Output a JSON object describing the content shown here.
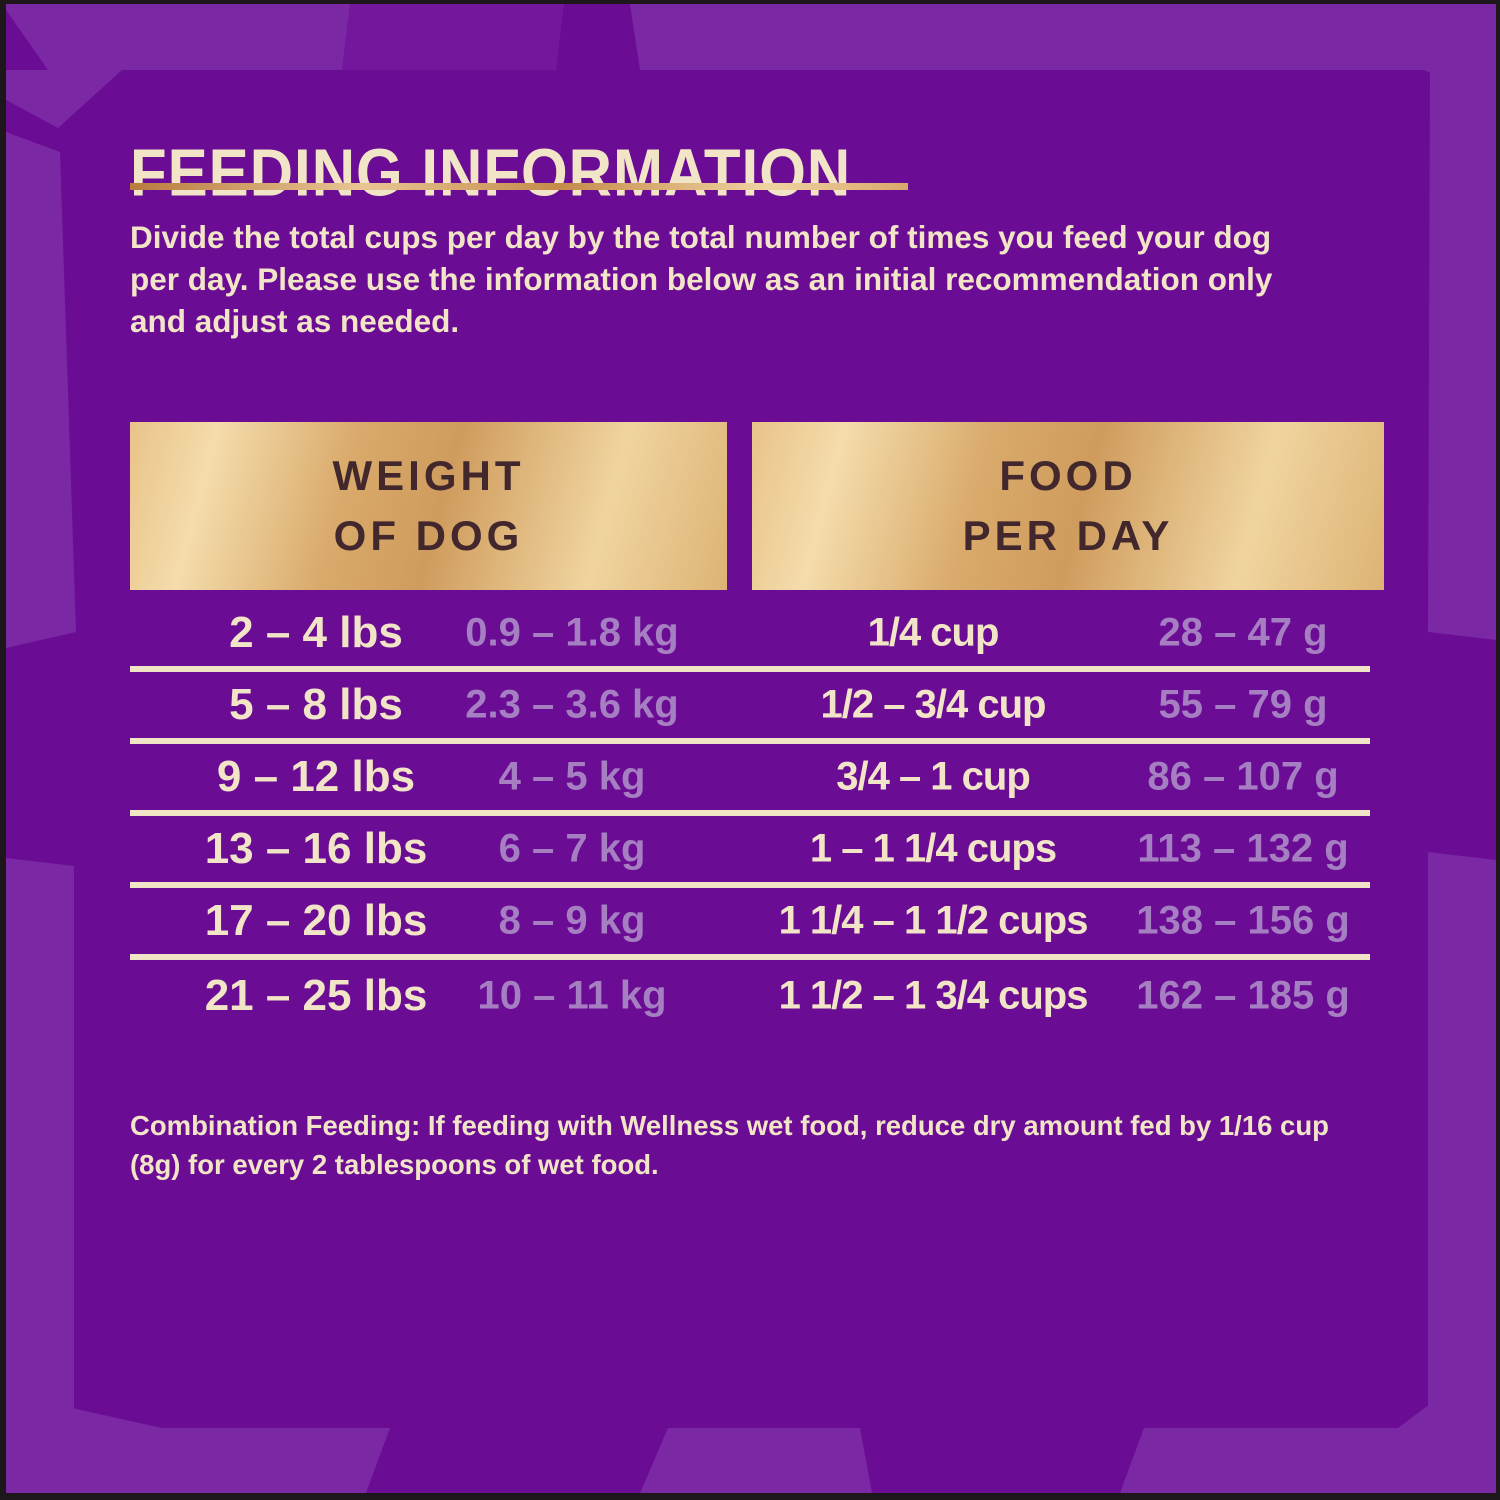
{
  "colors": {
    "background_purple": "#6A0C94",
    "background_purple_light": "#7B28A4",
    "background_purple_mid": "#74179D",
    "frame_black": "#1D161A",
    "cream": "#F2E5C7",
    "lavender": "#A67EC2",
    "header_text_brown": "#42282D"
  },
  "header": {
    "title": "FEEDING INFORMATION",
    "intro": "Divide the total cups per day by the total number of times you feed your dog per day. Please use the information below as an initial recommendation only and adjust as needed."
  },
  "table": {
    "column_headers": [
      {
        "line1": "WEIGHT",
        "line2": "OF DOG"
      },
      {
        "line1": "FOOD",
        "line2": "PER DAY"
      }
    ],
    "rows": [
      {
        "weight_lbs": "2 – 4 lbs",
        "weight_kg": "0.9 – 1.8 kg",
        "food_cups": "1/4 cup",
        "food_grams": "28 – 47 g"
      },
      {
        "weight_lbs": "5 – 8 lbs",
        "weight_kg": "2.3 – 3.6 kg",
        "food_cups": "1/2 – 3/4 cup",
        "food_grams": "55 – 79 g"
      },
      {
        "weight_lbs": "9 – 12 lbs",
        "weight_kg": "4 – 5 kg",
        "food_cups": "3/4 – 1 cup",
        "food_grams": "86 – 107 g"
      },
      {
        "weight_lbs": "13 – 16 lbs",
        "weight_kg": "6 – 7 kg",
        "food_cups": "1 – 1 1/4 cups",
        "food_grams": "113 – 132 g"
      },
      {
        "weight_lbs": "17 – 20 lbs",
        "weight_kg": "8 – 9 kg",
        "food_cups": "1 1/4 – 1 1/2 cups",
        "food_grams": "138 – 156 g"
      },
      {
        "weight_lbs": "21 – 25 lbs",
        "weight_kg": "10 – 11 kg",
        "food_cups": "1 1/2 – 1 3/4 cups",
        "food_grams": "162 – 185 g"
      }
    ]
  },
  "footnote": {
    "label": "Combination Feeding:",
    "text": "If feeding with Wellness wet food, reduce dry amount fed by 1/16 cup (8g) for every 2 tablespoons of wet food."
  }
}
